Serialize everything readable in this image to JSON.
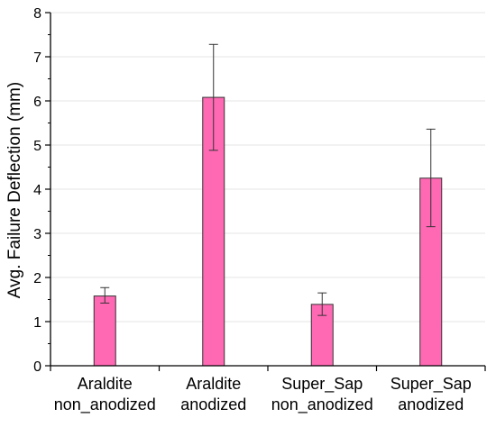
{
  "chart_data": {
    "type": "bar",
    "categories": [
      [
        "Araldite",
        "non_anodized"
      ],
      [
        "Araldite",
        "anodized"
      ],
      [
        "Super_Sap",
        "non_anodized"
      ],
      [
        "Super_Sap",
        "anodized"
      ]
    ],
    "values": [
      1.58,
      6.08,
      1.39,
      4.25
    ],
    "error_low": [
      1.42,
      4.88,
      1.14,
      3.15
    ],
    "error_high": [
      1.77,
      7.28,
      1.65,
      5.36
    ],
    "xlabel": "",
    "ylabel": "Avg. Failure Deflection (mm)",
    "ylim": [
      0,
      8
    ],
    "yticks": [
      "0",
      "1",
      "2",
      "3",
      "4",
      "5",
      "6",
      "7",
      "8"
    ],
    "grid": true,
    "bar_color": "#ff69b4",
    "bar_edge_color": "#333333"
  }
}
